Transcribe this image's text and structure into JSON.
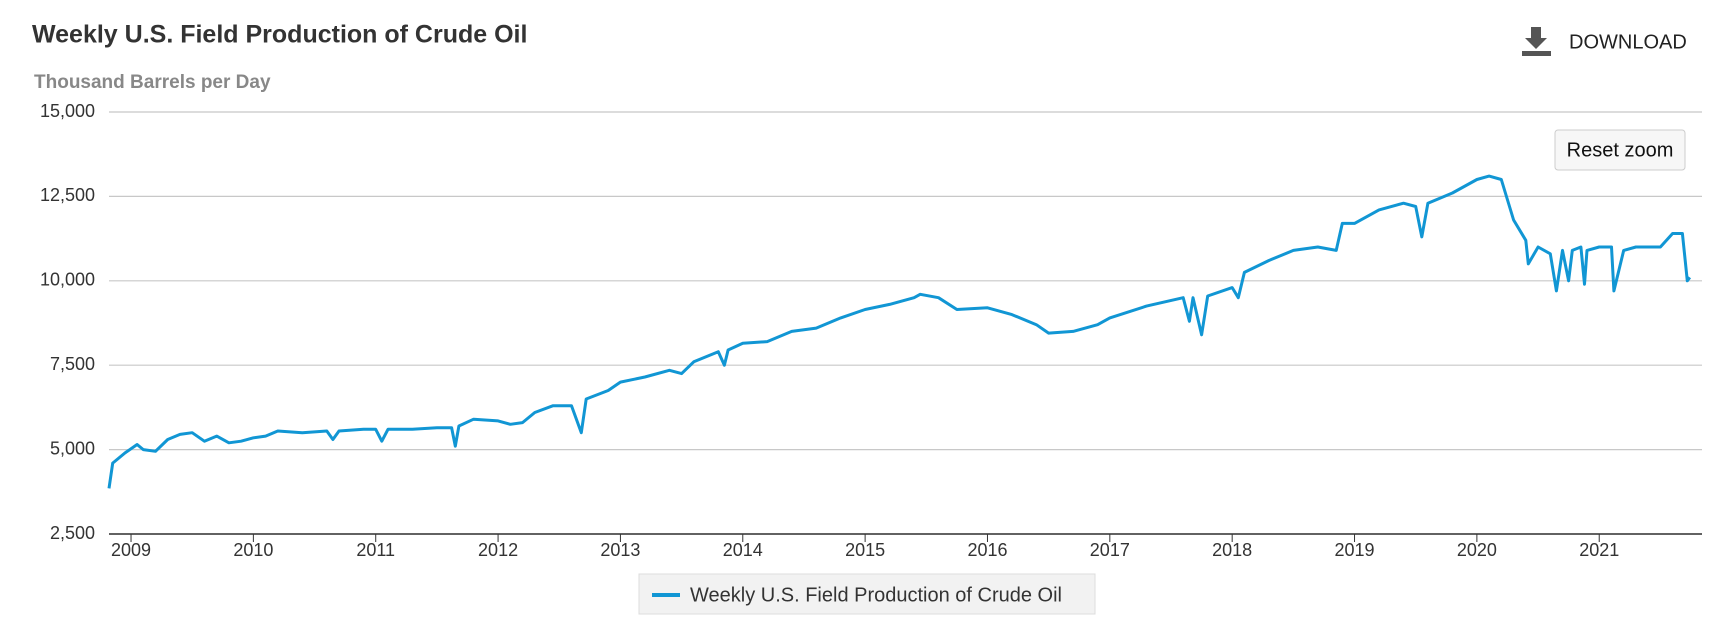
{
  "chart_data": {
    "type": "line",
    "title": "Weekly U.S. Field Production of Crude Oil",
    "subtitle": "Thousand Barrels per Day",
    "download": "DOWNLOAD",
    "reset_zoom": "Reset zoom",
    "xlim": [
      2008.82,
      2021.84
    ],
    "xticks": [
      2009,
      2010,
      2011,
      2012,
      2013,
      2014,
      2015,
      2016,
      2017,
      2018,
      2019,
      2020,
      2021
    ],
    "ylim": [
      2500,
      15000
    ],
    "yticks": [
      {
        "value": 2500,
        "label": "2,500"
      },
      {
        "value": 5000,
        "label": "5,000"
      },
      {
        "value": 7500,
        "label": "7,500"
      },
      {
        "value": 10000,
        "label": "10,000"
      },
      {
        "value": 12500,
        "label": "12,500"
      },
      {
        "value": 15000,
        "label": "15,000"
      }
    ],
    "grid": true,
    "legend": "bottom",
    "x": [
      2008.82,
      2008.85,
      2008.95,
      2009.05,
      2009.1,
      2009.2,
      2009.3,
      2009.4,
      2009.5,
      2009.6,
      2009.7,
      2009.8,
      2009.9,
      2010.0,
      2010.1,
      2010.2,
      2010.4,
      2010.6,
      2010.65,
      2010.7,
      2010.9,
      2011.0,
      2011.05,
      2011.1,
      2011.3,
      2011.5,
      2011.62,
      2011.65,
      2011.68,
      2011.8,
      2012.0,
      2012.1,
      2012.2,
      2012.3,
      2012.45,
      2012.6,
      2012.68,
      2012.72,
      2012.9,
      2013.0,
      2013.2,
      2013.4,
      2013.5,
      2013.6,
      2013.8,
      2013.85,
      2013.88,
      2014.0,
      2014.2,
      2014.4,
      2014.6,
      2014.8,
      2015.0,
      2015.2,
      2015.4,
      2015.45,
      2015.6,
      2015.75,
      2016.0,
      2016.2,
      2016.4,
      2016.5,
      2016.7,
      2016.9,
      2017.0,
      2017.3,
      2017.6,
      2017.65,
      2017.68,
      2017.75,
      2017.8,
      2018.0,
      2018.05,
      2018.1,
      2018.3,
      2018.5,
      2018.7,
      2018.85,
      2018.9,
      2019.0,
      2019.2,
      2019.4,
      2019.5,
      2019.55,
      2019.6,
      2019.8,
      2020.0,
      2020.1,
      2020.2,
      2020.3,
      2020.4,
      2020.42,
      2020.5,
      2020.6,
      2020.65,
      2020.7,
      2020.75,
      2020.78,
      2020.85,
      2020.88,
      2020.9,
      2021.0,
      2021.1,
      2021.12,
      2021.2,
      2021.3,
      2021.5,
      2021.6,
      2021.68,
      2021.72,
      2021.74
    ],
    "series": [
      {
        "name": "Weekly U.S. Field Production of Crude Oil",
        "color": "#1196d4",
        "values": [
          3850,
          4600,
          4900,
          5150,
          5000,
          4950,
          5300,
          5450,
          5500,
          5250,
          5400,
          5200,
          5250,
          5350,
          5400,
          5550,
          5500,
          5550,
          5300,
          5550,
          5600,
          5600,
          5250,
          5600,
          5600,
          5650,
          5650,
          5100,
          5700,
          5900,
          5850,
          5750,
          5800,
          6100,
          6300,
          6300,
          5500,
          6500,
          6750,
          7000,
          7150,
          7350,
          7250,
          7600,
          7900,
          7500,
          7950,
          8150,
          8200,
          8500,
          8600,
          8900,
          9150,
          9300,
          9500,
          9600,
          9500,
          9150,
          9200,
          9000,
          8700,
          8450,
          8500,
          8700,
          8900,
          9250,
          9500,
          8800,
          9500,
          8400,
          9550,
          9800,
          9500,
          10250,
          10600,
          10900,
          11000,
          10900,
          11700,
          11700,
          12100,
          12300,
          12200,
          11300,
          12300,
          12600,
          13000,
          13100,
          13000,
          11800,
          11200,
          10500,
          11000,
          10800,
          9700,
          10900,
          10000,
          10900,
          11000,
          9900,
          10900,
          11000,
          11000,
          9700,
          10900,
          11000,
          11000,
          11400,
          11400,
          10000,
          10100
        ]
      }
    ]
  }
}
